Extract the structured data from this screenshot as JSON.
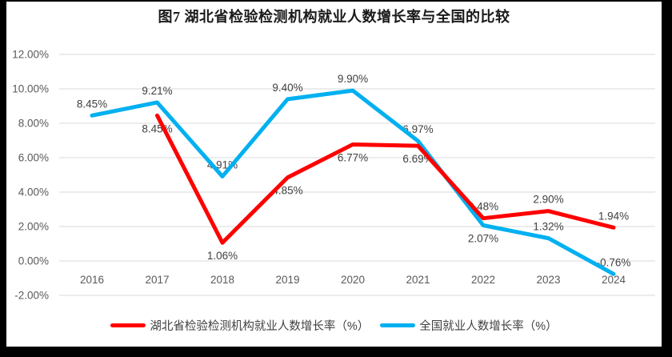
{
  "chart_data": {
    "type": "line",
    "title": "图7 湖北省检验检测机构就业人数增长率与全国的比较",
    "categories": [
      "2016",
      "2017",
      "2018",
      "2019",
      "2020",
      "2021",
      "2022",
      "2023",
      "2024"
    ],
    "series": [
      {
        "name": "湖北省检验检测机构就业人数增长率（%）",
        "color": "#FF0000",
        "values": [
          null,
          8.45,
          1.06,
          4.85,
          6.77,
          6.69,
          2.48,
          2.9,
          1.94
        ],
        "labels": [
          "",
          "8.45%",
          "1.06%",
          "4.85%",
          "6.77%",
          "6.69%",
          "2.48%",
          "2.90%",
          "1.94%"
        ],
        "label_positions": [
          "",
          "below",
          "below",
          "below",
          "below",
          "below",
          "above",
          "above",
          "above"
        ]
      },
      {
        "name": "全国就业人数增长率（%）",
        "color": "#00B0F0",
        "values": [
          8.45,
          9.21,
          4.91,
          9.4,
          9.9,
          6.97,
          2.07,
          1.32,
          -0.76
        ],
        "labels": [
          "8.45%",
          "9.21%",
          "4.91%",
          "9.40%",
          "9.90%",
          "6.97%",
          "2.07%",
          "1.32%",
          "-0.76%"
        ],
        "label_positions": [
          "above",
          "above",
          "above",
          "above",
          "above",
          "above",
          "below",
          "above",
          "above"
        ]
      }
    ],
    "y_axis": {
      "ticks": [
        "12.00%",
        "10.00%",
        "8.00%",
        "6.00%",
        "4.00%",
        "2.00%",
        "0.00%",
        "-2.00%"
      ],
      "tick_values": [
        12,
        10,
        8,
        6,
        4,
        2,
        0,
        -2
      ],
      "ylim": [
        -2,
        12
      ],
      "grid": true
    },
    "legend_position": "bottom"
  },
  "colors": {
    "grid": "#D9D9D9",
    "axis_text": "#595959",
    "label_text": "#404040",
    "frame_border": "#000000",
    "background": "#FFFFFF"
  }
}
